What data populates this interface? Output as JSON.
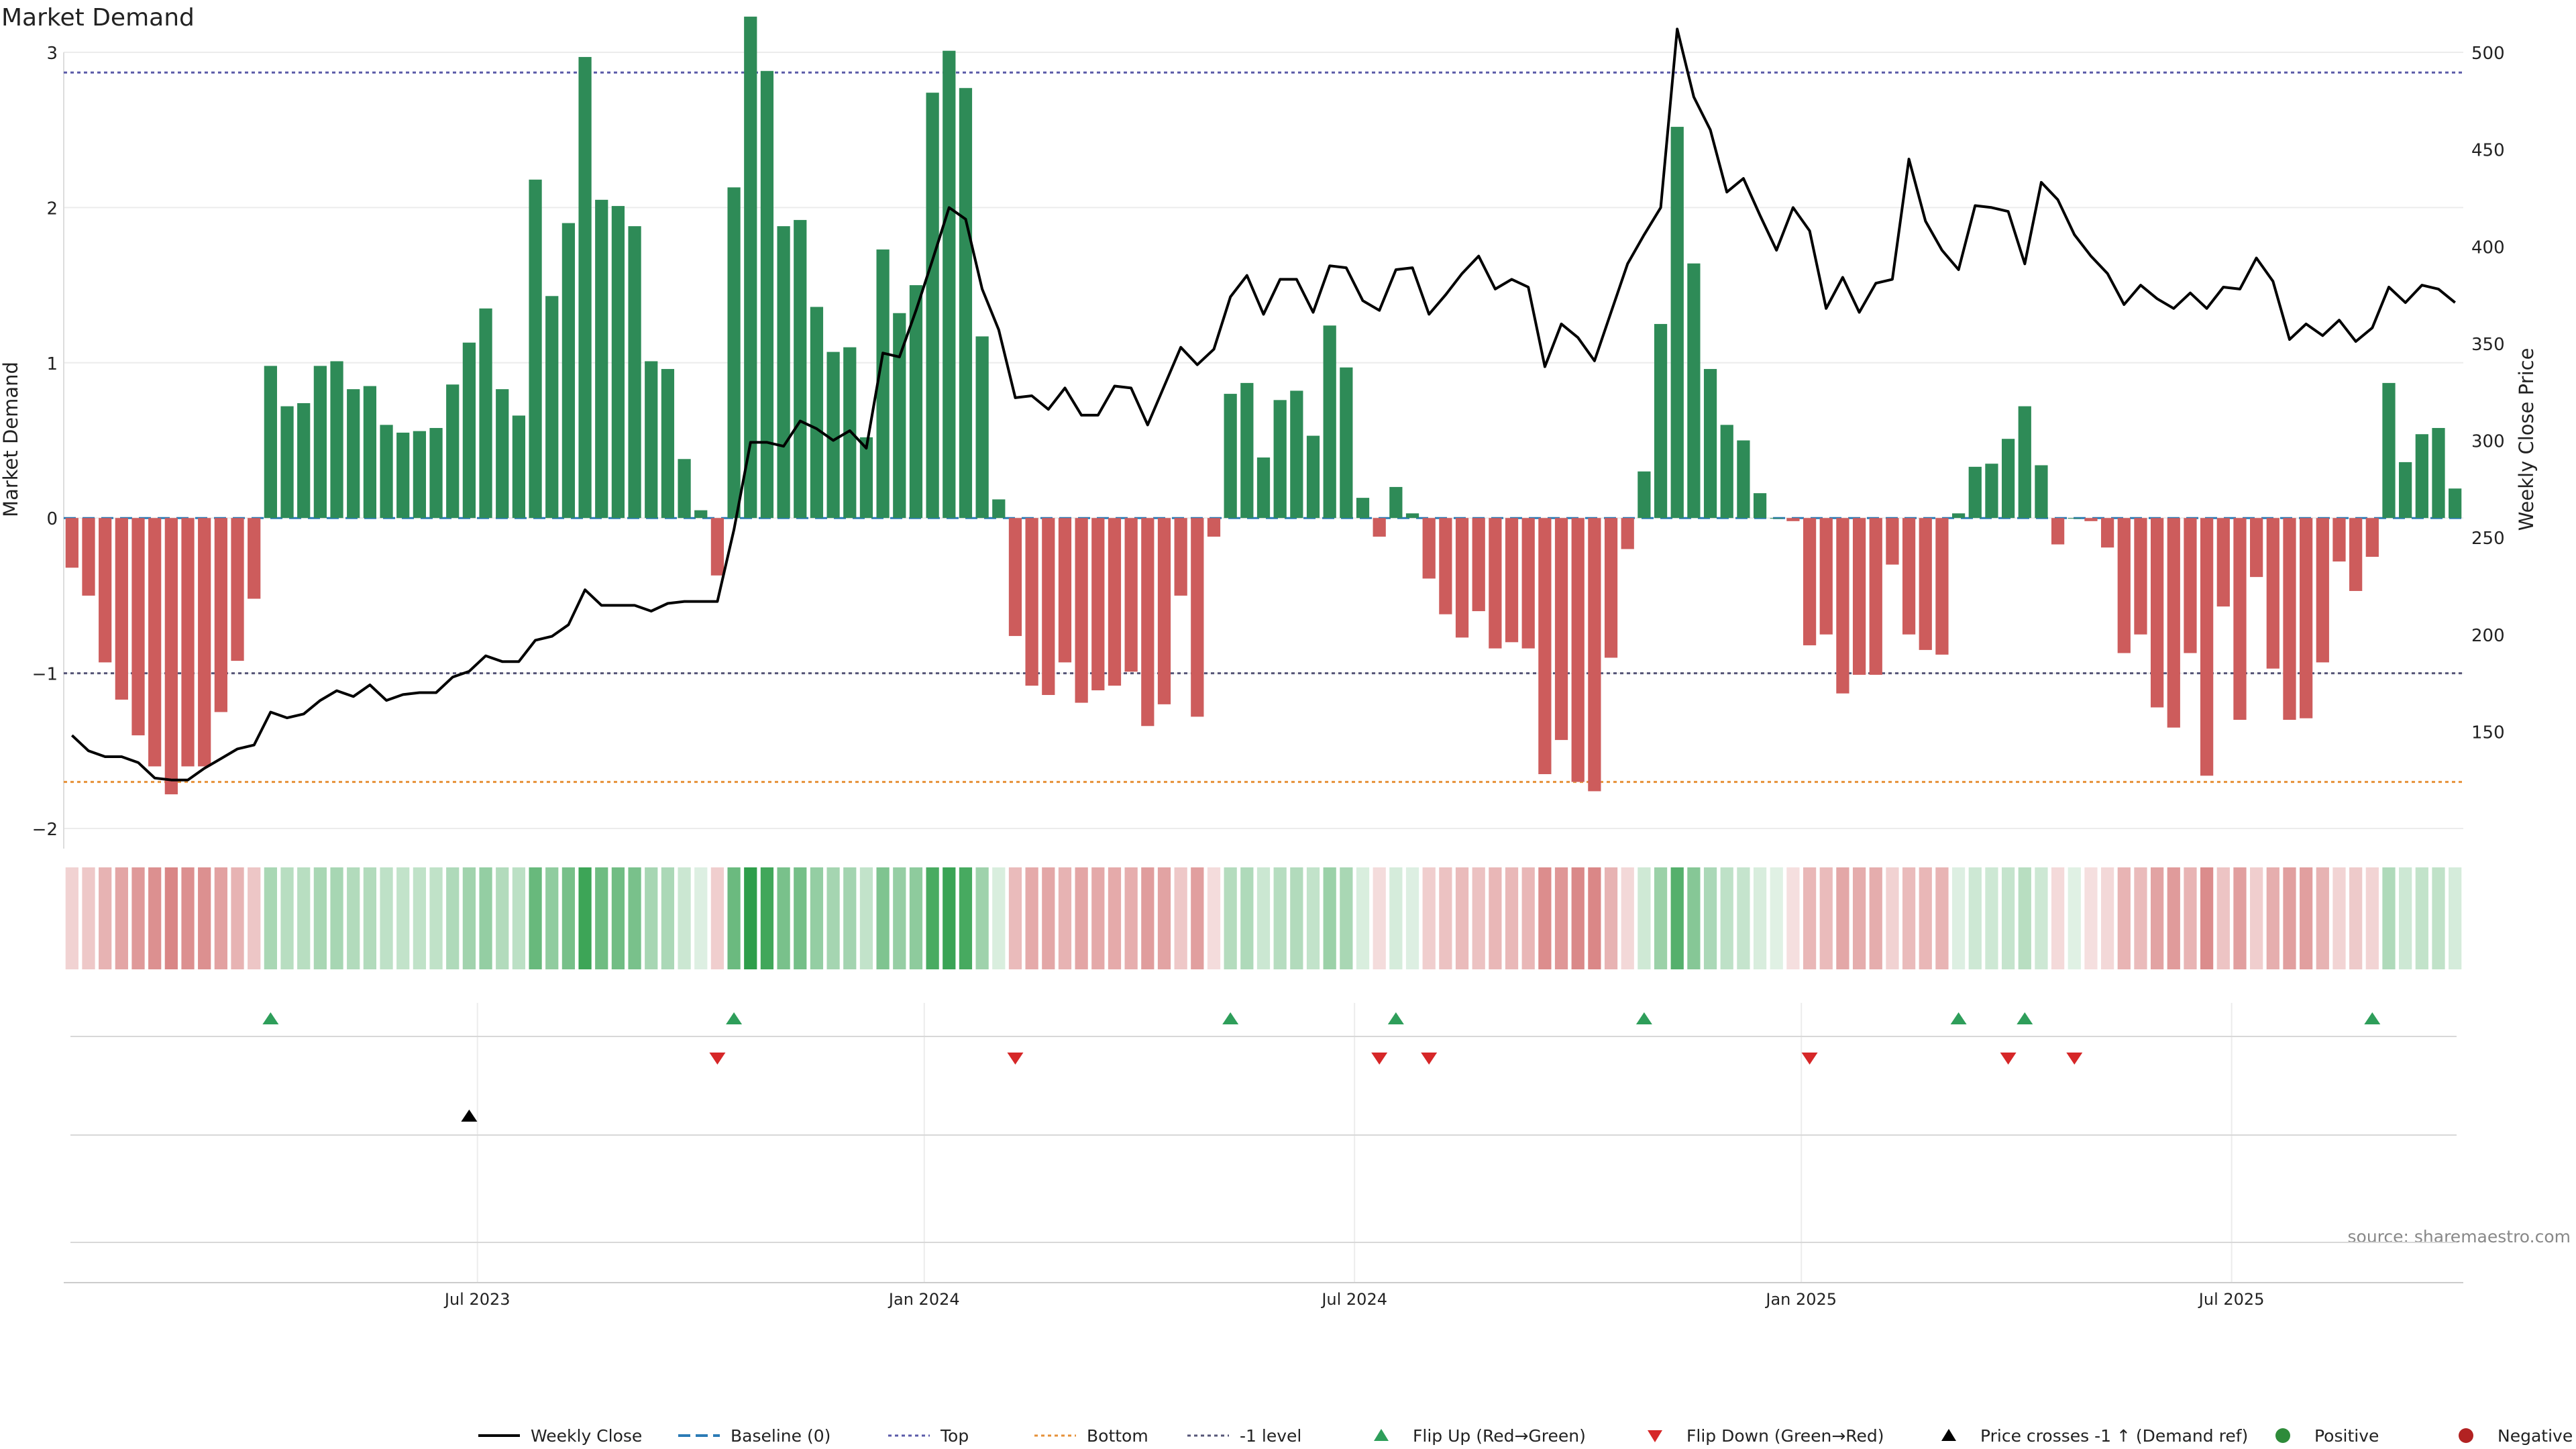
{
  "chart_data": {
    "type": "bar",
    "title": "Market Demand",
    "ylabel_left": "Market Demand",
    "ylabel_right": "Weekly Close Price",
    "source_text": "source: sharemaestro.com",
    "x_tick_labels": [
      "Jul 2023",
      "Jan 2024",
      "Jul 2024",
      "Jan 2025",
      "Jul 2025"
    ],
    "x_tick_index": [
      25,
      52,
      78,
      105,
      131
    ],
    "ylim_left": [
      -2.0,
      3.0
    ],
    "ylim_right": [
      100,
      500
    ],
    "y_ticks_left": [
      -2,
      -1,
      0,
      1,
      2,
      3
    ],
    "y_ticks_left_labels": [
      "−2",
      "−1",
      "0",
      "1",
      "2",
      "3"
    ],
    "y_ticks_right": [
      150,
      200,
      250,
      300,
      350,
      400,
      450,
      500
    ],
    "y_ticks_right_labels": [
      "150",
      "200",
      "250",
      "300",
      "350",
      "400",
      "450",
      "500"
    ],
    "reference_lines": {
      "top": 2.87,
      "bottom": -1.7,
      "minus_one_level": -1.0,
      "baseline": 0
    },
    "demand": [
      -0.32,
      -0.5,
      -0.93,
      -1.17,
      -1.4,
      -1.6,
      -1.78,
      -1.6,
      -1.6,
      -1.25,
      -0.92,
      -0.52,
      0.98,
      0.72,
      0.74,
      0.98,
      1.01,
      0.83,
      0.85,
      0.6,
      0.55,
      0.56,
      0.58,
      0.86,
      1.13,
      1.35,
      0.83,
      0.66,
      2.18,
      1.43,
      1.9,
      2.97,
      2.05,
      2.01,
      1.88,
      1.01,
      0.96,
      0.38,
      0.05,
      -0.37,
      2.13,
      3.23,
      2.88,
      1.88,
      1.92,
      1.36,
      1.07,
      1.1,
      0.52,
      1.73,
      1.32,
      1.5,
      2.74,
      3.01,
      2.77,
      1.17,
      0.12,
      -0.76,
      -1.08,
      -1.14,
      -0.93,
      -1.19,
      -1.11,
      -1.08,
      -0.99,
      -1.34,
      -1.2,
      -0.5,
      -1.28,
      -0.12,
      0.8,
      0.87,
      0.39,
      0.76,
      0.82,
      0.53,
      1.24,
      0.97,
      0.13,
      -0.12,
      0.2,
      0.03,
      -0.39,
      -0.62,
      -0.77,
      -0.6,
      -0.84,
      -0.8,
      -0.84,
      -1.65,
      -1.43,
      -1.7,
      -1.76,
      -0.9,
      -0.2,
      0.3,
      1.25,
      2.52,
      1.64,
      0.96,
      0.6,
      0.5,
      0.16,
      0.0,
      -0.02,
      -0.82,
      -0.75,
      -1.13,
      -1.01,
      -1.01,
      -0.3,
      -0.75,
      -0.85,
      -0.88,
      0.03,
      0.33,
      0.35,
      0.51,
      0.72,
      0.34,
      -0.17,
      0.0,
      -0.02,
      -0.19,
      -0.87,
      -0.75,
      -1.22,
      -1.35,
      -0.87,
      -1.66,
      -0.57,
      -1.3,
      -0.38,
      -0.97,
      -1.3,
      -1.29,
      -0.93,
      -0.28,
      -0.47,
      -0.25,
      0.87,
      0.36,
      0.54,
      0.58,
      0.19
    ],
    "weekly_close": [
      148,
      140,
      137,
      137,
      134,
      126,
      125,
      125,
      131,
      136,
      141,
      143,
      160,
      157,
      159,
      166,
      171,
      168,
      174,
      166,
      169,
      170,
      170,
      178,
      181,
      189,
      186,
      186,
      197,
      199,
      205,
      223,
      215,
      215,
      215,
      212,
      216,
      217,
      217,
      217,
      254,
      299,
      299,
      297,
      310,
      306,
      300,
      305,
      296,
      345,
      343,
      367,
      393,
      420,
      414,
      378,
      357,
      322,
      323,
      316,
      327,
      313,
      313,
      328,
      327,
      308,
      328,
      348,
      339,
      347,
      374,
      385,
      365,
      383,
      383,
      366,
      390,
      389,
      372,
      367,
      388,
      389,
      365,
      375,
      386,
      395,
      378,
      383,
      379,
      338,
      360,
      353,
      341,
      366,
      391,
      406,
      420,
      512,
      477,
      460,
      428,
      435,
      416,
      398,
      420,
      408,
      368,
      384,
      366,
      381,
      383,
      445,
      413,
      398,
      388,
      421,
      420,
      418,
      391,
      433,
      424,
      406,
      395,
      386,
      370,
      380,
      373,
      368,
      376,
      368,
      379,
      378,
      394,
      382,
      352,
      360,
      354,
      362,
      351,
      358,
      379,
      371,
      380,
      378,
      371
    ],
    "top_strip_markers": [
      {
        "index": 12,
        "value": 0.98
      },
      {
        "index": 40,
        "value": 2.13
      },
      {
        "index": 70,
        "value": 0.8
      },
      {
        "index": 80,
        "value": 0.2
      },
      {
        "index": 95,
        "value": 0.3
      },
      {
        "index": 114,
        "value": 0.03
      },
      {
        "index": 118,
        "value": 0.72
      },
      {
        "index": 139,
        "value": 0.87
      }
    ],
    "flip_up_indices": [
      12,
      40,
      70,
      80,
      95,
      114,
      118,
      139
    ],
    "flip_down_indices": [
      39,
      57,
      79,
      82,
      105,
      117,
      121
    ],
    "price_cross_indices": [
      24
    ],
    "legend": [
      {
        "label": "Weekly Close",
        "marker": "line",
        "color": "#000000"
      },
      {
        "label": "Baseline (0)",
        "marker": "dash",
        "color": "#2c7bb6"
      },
      {
        "label": "Top",
        "marker": "dotted",
        "color": "#5a5aa8"
      },
      {
        "label": "Bottom",
        "marker": "dotted",
        "color": "#e69138"
      },
      {
        "label": "-1 level",
        "marker": "dotted",
        "color": "#555577"
      },
      {
        "label": "Flip Up (Red→Green)",
        "marker": "triangle-up",
        "color": "#2e9e5a"
      },
      {
        "label": "Flip Down (Green→Red)",
        "marker": "triangle-down",
        "color": "#d62728"
      },
      {
        "label": "Price crosses -1 ↑ (Demand ref)",
        "marker": "triangle-up",
        "color": "#000000"
      },
      {
        "label": "Positive",
        "marker": "circle",
        "color": "#2e8b3a"
      },
      {
        "label": "Negative",
        "marker": "circle",
        "color": "#b22222"
      }
    ],
    "colors": {
      "positive_bar": "#2e8b57",
      "negative_bar": "#cd5c5c",
      "price_line": "#000000",
      "top_line": "#5a5aa8",
      "bottom_line": "#e69138",
      "minus_one_line": "#555577",
      "baseline": "#2c7bb6",
      "flip_up": "#2e9e5a",
      "flip_down": "#d62728",
      "price_cross": "#000000",
      "strip_positive": "#2e9e4a",
      "strip_negative": "#c23b3b"
    }
  }
}
